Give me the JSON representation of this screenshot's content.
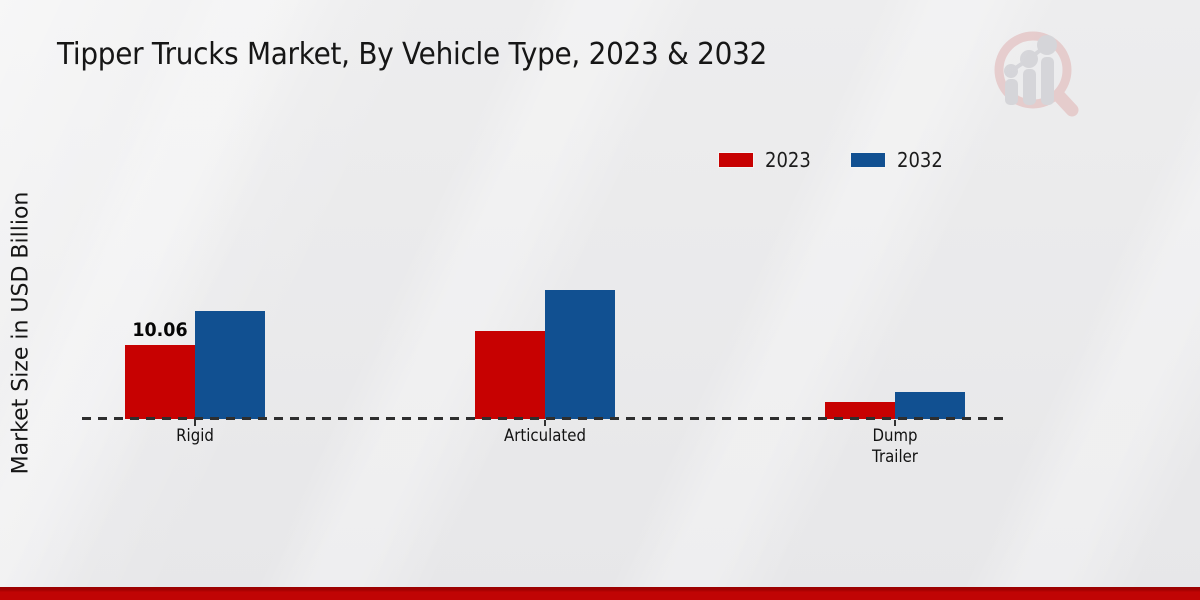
{
  "title": "Tipper Trucks Market, By Vehicle Type, 2023 & 2032",
  "y_axis_label": "Market Size in USD Billion",
  "legend": [
    {
      "label": "2023",
      "color": "#c70101"
    },
    {
      "label": "2032",
      "color": "#115091"
    }
  ],
  "colors": {
    "series_2023": "#c70101",
    "series_2032": "#115091",
    "footer_strip": "#c00404",
    "background": "#e9e9eb",
    "baseline": "#2e2e2e"
  },
  "chart_data": {
    "type": "bar",
    "title": "Tipper Trucks Market, By Vehicle Type, 2023 & 2032",
    "xlabel": "",
    "ylabel": "Market Size in USD Billion",
    "categories": [
      "Rigid",
      "Articulated",
      "Dump Trailer"
    ],
    "series": [
      {
        "name": "2023",
        "color": "#c70101",
        "values": [
          10.06,
          12.0,
          2.3
        ]
      },
      {
        "name": "2032",
        "color": "#115091",
        "values": [
          14.7,
          17.5,
          3.7
        ]
      }
    ],
    "ylim": [
      0,
      20
    ],
    "grid": false,
    "legend_position": "top-right",
    "baseline_style": "dashed",
    "value_labels": [
      {
        "series": "2023",
        "category": "Rigid",
        "text": "10.06"
      }
    ]
  }
}
